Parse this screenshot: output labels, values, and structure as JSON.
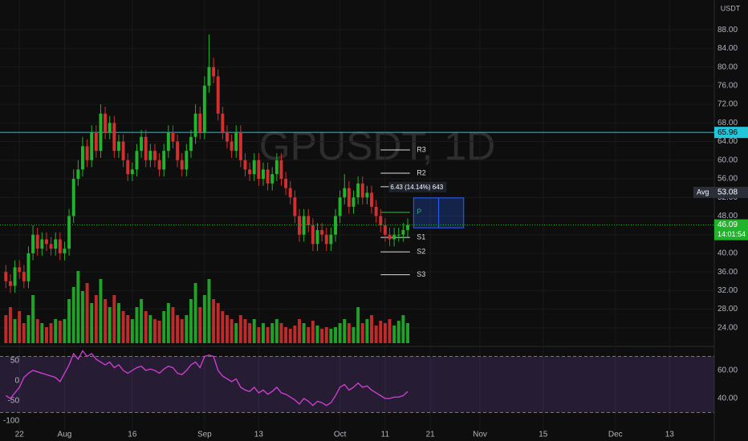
{
  "chart_data": {
    "type": "candlestick",
    "watermark": "GPUSDT, 1D",
    "currency": "USDT",
    "up_color": "#22b32c",
    "down_color": "#d32f2f",
    "xlim": [
      -1.3,
      156.9
    ],
    "xticks": [
      {
        "value": 3,
        "label": "22"
      },
      {
        "value": 13,
        "label": "Aug"
      },
      {
        "value": 28,
        "label": "16"
      },
      {
        "value": 44,
        "label": "Sep"
      },
      {
        "value": 56,
        "label": "13"
      },
      {
        "value": 74,
        "label": "Oct"
      },
      {
        "value": 84,
        "label": "11"
      },
      {
        "value": 94,
        "label": "21"
      },
      {
        "value": 105,
        "label": "Nov"
      },
      {
        "value": 119,
        "label": "15"
      },
      {
        "value": 135,
        "label": "Dec"
      },
      {
        "value": 147,
        "label": "13"
      }
    ],
    "ylim": [
      20.7,
      94.4
    ],
    "yticks": [
      {
        "value": 88,
        "label": "88.00"
      },
      {
        "value": 84,
        "label": "84.00"
      },
      {
        "value": 80,
        "label": "80.00"
      },
      {
        "value": 76,
        "label": "76.00"
      },
      {
        "value": 72,
        "label": "72.00"
      },
      {
        "value": 68,
        "label": "68.00"
      },
      {
        "value": 64,
        "label": "64.00"
      },
      {
        "value": 60,
        "label": "60.00"
      },
      {
        "value": 56,
        "label": "56.00"
      },
      {
        "value": 52,
        "label": "52.00"
      },
      {
        "value": 48,
        "label": "48.00"
      },
      {
        "value": 44,
        "label": "44.00"
      },
      {
        "value": 40,
        "label": "40.00"
      },
      {
        "value": 36,
        "label": "36.00"
      },
      {
        "value": 32,
        "label": "32.00"
      },
      {
        "value": 28,
        "label": "28.00"
      },
      {
        "value": 24,
        "label": "24.00"
      }
    ],
    "candles": [
      [
        36,
        37.5,
        32.5,
        34
      ],
      [
        34,
        35.5,
        31.5,
        33
      ],
      [
        33,
        38.5,
        31.5,
        37
      ],
      [
        37,
        38.5,
        34.5,
        36
      ],
      [
        36,
        37.5,
        32.5,
        34
      ],
      [
        34,
        41.5,
        32.5,
        40
      ],
      [
        40,
        46,
        38.5,
        44
      ],
      [
        44,
        45.5,
        39.5,
        41
      ],
      [
        41,
        44.5,
        39.5,
        43
      ],
      [
        43,
        44.5,
        40.5,
        42
      ],
      [
        42,
        43.5,
        39.5,
        41
      ],
      [
        41,
        44.5,
        39.5,
        43
      ],
      [
        43,
        44.5,
        38.5,
        40
      ],
      [
        40,
        42.5,
        38.5,
        41
      ],
      [
        41,
        49.5,
        39.5,
        48
      ],
      [
        48,
        58,
        46.5,
        56
      ],
      [
        56,
        60,
        54.5,
        58
      ],
      [
        58,
        65,
        56.5,
        63
      ],
      [
        63,
        64.5,
        58.5,
        60
      ],
      [
        60,
        67.5,
        58.5,
        66
      ],
      [
        66,
        67.5,
        60.5,
        62
      ],
      [
        62,
        72,
        60.5,
        70
      ],
      [
        70,
        71.5,
        64.5,
        66
      ],
      [
        66,
        69.5,
        64.5,
        68
      ],
      [
        68,
        69.5,
        60.5,
        62
      ],
      [
        62,
        65.5,
        60.5,
        64
      ],
      [
        64,
        65.5,
        58.5,
        60
      ],
      [
        60,
        61.5,
        55.5,
        57
      ],
      [
        57,
        59.5,
        55.5,
        58
      ],
      [
        58,
        63.5,
        56.5,
        62
      ],
      [
        62,
        66.5,
        60.5,
        65
      ],
      [
        65,
        66.5,
        58.5,
        60
      ],
      [
        60,
        63.5,
        58.5,
        62
      ],
      [
        62,
        63.5,
        58.5,
        60
      ],
      [
        60,
        61.5,
        56.5,
        58
      ],
      [
        58,
        63.5,
        56.5,
        62
      ],
      [
        62,
        67.5,
        60.5,
        66
      ],
      [
        66,
        67.5,
        62.5,
        64
      ],
      [
        64,
        65.5,
        58.5,
        60
      ],
      [
        60,
        61.5,
        56.5,
        58
      ],
      [
        58,
        63.5,
        56.5,
        62
      ],
      [
        62,
        66.5,
        60.5,
        65
      ],
      [
        65,
        72,
        63.5,
        70
      ],
      [
        70,
        71.5,
        64.5,
        66
      ],
      [
        66,
        78,
        64.5,
        76
      ],
      [
        76,
        87,
        74.5,
        80
      ],
      [
        80,
        82,
        76.5,
        78
      ],
      [
        78,
        79.5,
        68.5,
        70
      ],
      [
        70,
        71.5,
        64.5,
        66
      ],
      [
        66,
        67.5,
        62.5,
        64
      ],
      [
        64,
        65.5,
        60.5,
        62
      ],
      [
        62,
        67.5,
        60.5,
        66
      ],
      [
        66,
        67.5,
        58.5,
        60
      ],
      [
        60,
        61.5,
        56.5,
        58
      ],
      [
        58,
        59.5,
        55.5,
        57
      ],
      [
        57,
        61.5,
        55.5,
        60
      ],
      [
        60,
        61.5,
        54.5,
        56
      ],
      [
        56,
        59.5,
        54.5,
        58
      ],
      [
        58,
        59.5,
        53.5,
        55
      ],
      [
        55,
        58.5,
        53.5,
        57
      ],
      [
        57,
        61.5,
        55.5,
        60
      ],
      [
        60,
        61.5,
        54.5,
        56
      ],
      [
        56,
        57.5,
        52.5,
        54
      ],
      [
        54,
        55.5,
        50.5,
        52
      ],
      [
        52,
        53.5,
        46.5,
        48
      ],
      [
        48,
        49.5,
        42.5,
        44
      ],
      [
        44,
        49.5,
        42.5,
        48
      ],
      [
        48,
        49.5,
        44.5,
        46
      ],
      [
        46,
        47.5,
        40.5,
        42
      ],
      [
        42,
        46.5,
        40.5,
        45
      ],
      [
        45,
        46.5,
        42.5,
        44
      ],
      [
        44,
        45.5,
        40.5,
        42
      ],
      [
        42,
        45.5,
        40.5,
        44
      ],
      [
        44,
        49.5,
        42.5,
        48
      ],
      [
        48,
        53.5,
        46.5,
        52
      ],
      [
        52,
        57,
        50.5,
        54
      ],
      [
        54,
        55.5,
        48.5,
        50
      ],
      [
        50,
        53.5,
        48.5,
        52
      ],
      [
        52,
        56.5,
        50.5,
        55
      ],
      [
        55,
        56.5,
        50.5,
        52
      ],
      [
        52,
        54.5,
        50.5,
        53
      ],
      [
        53,
        54.5,
        48.5,
        50
      ],
      [
        50,
        51.5,
        46.5,
        48
      ],
      [
        48,
        49.5,
        44.5,
        46
      ],
      [
        46,
        47.5,
        42.5,
        44
      ],
      [
        44,
        45.5,
        41.5,
        43
      ],
      [
        43,
        45.5,
        41.5,
        44
      ],
      [
        44,
        45.5,
        42.5,
        44
      ],
      [
        44,
        46.5,
        42.5,
        45
      ],
      [
        45,
        47.5,
        43.5,
        46.09
      ]
    ],
    "volume": [
      35,
      45,
      30,
      40,
      25,
      35,
      60,
      30,
      25,
      20,
      25,
      30,
      28,
      30,
      55,
      70,
      90,
      65,
      75,
      50,
      60,
      80,
      55,
      45,
      60,
      50,
      40,
      35,
      30,
      45,
      55,
      40,
      35,
      30,
      28,
      40,
      50,
      45,
      35,
      30,
      35,
      55,
      75,
      45,
      60,
      80,
      55,
      50,
      40,
      35,
      30,
      25,
      35,
      30,
      25,
      30,
      20,
      25,
      20,
      25,
      30,
      25,
      20,
      18,
      22,
      30,
      25,
      20,
      28,
      22,
      18,
      20,
      18,
      20,
      25,
      30,
      25,
      20,
      45,
      25,
      30,
      35,
      22,
      28,
      25,
      30,
      22,
      28,
      35,
      25
    ],
    "levels": [
      {
        "value": 65.96,
        "color": "#26c6da"
      }
    ],
    "avg": {
      "label": "Avg",
      "value": 53.08
    },
    "last": {
      "value": 46.09,
      "countdown": "14:01:54"
    },
    "pivots": [
      {
        "name": "R3",
        "value": 62.2
      },
      {
        "name": "R2",
        "value": 57.2
      },
      {
        "name": "R1",
        "value": 54.3
      },
      {
        "name": "P",
        "value": 48.8
      },
      {
        "name": "S1",
        "value": 43.4
      },
      {
        "name": "S2",
        "value": 40.3
      },
      {
        "name": "S3",
        "value": 35.4
      }
    ],
    "measure": {
      "x0": 90.3,
      "x1": 101.4,
      "from": 45.47,
      "to": 51.9,
      "label": "6.43 (14.14%) 643"
    },
    "oscillator": {
      "color": "#d63fd6",
      "ylim": [
        17.1,
        74.3
      ],
      "yticks": [
        {
          "value": 60,
          "label": "60.00"
        },
        {
          "value": 40,
          "label": "40.00"
        }
      ],
      "bands": [
        70,
        30
      ],
      "left_ylim": [
        -124,
        76
      ],
      "left_yticks": [
        50,
        0,
        -50,
        -100
      ],
      "values": [
        42,
        40,
        44,
        48,
        55,
        58,
        60,
        59,
        58,
        57,
        56,
        55,
        52,
        58,
        64,
        72,
        68,
        74,
        70,
        72,
        68,
        66,
        64,
        66,
        62,
        64,
        60,
        58,
        60,
        62,
        63,
        60,
        61,
        60,
        58,
        61,
        63,
        62,
        58,
        57,
        60,
        64,
        66,
        62,
        70,
        71,
        70,
        60,
        56,
        54,
        52,
        54,
        48,
        46,
        45,
        48,
        44,
        46,
        43,
        45,
        48,
        44,
        43,
        41,
        39,
        36,
        40,
        38,
        35,
        38,
        37,
        35,
        37,
        42,
        48,
        50,
        46,
        48,
        51,
        48,
        49,
        46,
        44,
        42,
        40,
        40,
        41,
        41,
        42,
        45
      ]
    }
  }
}
